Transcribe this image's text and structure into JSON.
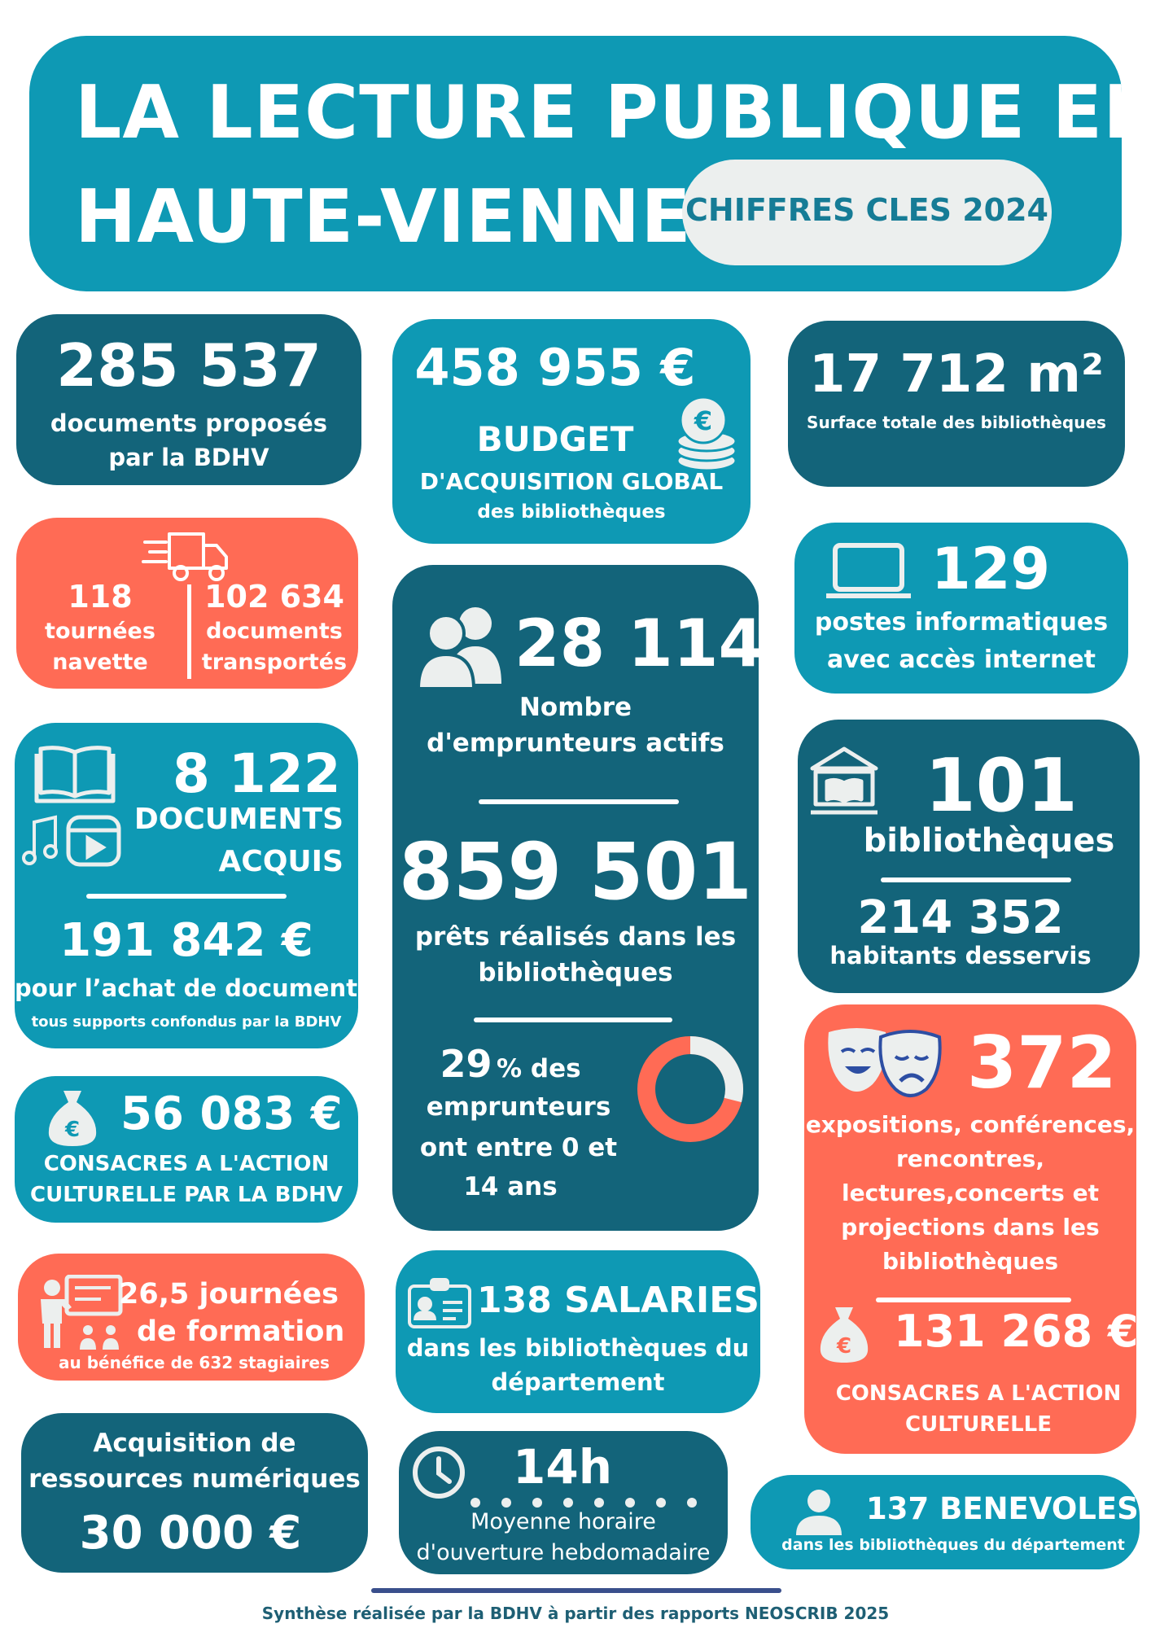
{
  "header": {
    "title_line1": "LA LECTURE PUBLIQUE EN",
    "title_line2": "HAUTE-VIENNE",
    "badge": "CHIFFRES CLES 2024"
  },
  "documents": {
    "value": "285 537",
    "label1": "documents proposés",
    "label2": "par la BDHV"
  },
  "budget": {
    "value": "458 955 €",
    "label1": "BUDGET",
    "label2": "D'ACQUISITION GLOBAL",
    "label3": "des bibliothèques"
  },
  "surface": {
    "value": "17 712 m²",
    "label": "Surface totale des bibliothèques"
  },
  "navette": {
    "tours_value": "118",
    "tours_label1": "tournées",
    "tours_label2": "navette",
    "docs_value": "102 634",
    "docs_label1": "documents",
    "docs_label2": "transportés"
  },
  "emprunteurs": {
    "value": "28 114",
    "label1": "Nombre",
    "label2": "d'emprunteurs actifs",
    "prets_value": "859 501",
    "prets_label1": "prêts réalisés dans les",
    "prets_label2": "bibliothèques",
    "pct_value": "29",
    "pct_text": "% des",
    "pct_label1": "emprunteurs",
    "pct_label2": "ont entre 0 et",
    "pct_label3": "14 ans",
    "pct_fraction": 0.29
  },
  "postes": {
    "value": "129",
    "label1": "postes informatiques",
    "label2": "avec accès internet"
  },
  "acquis": {
    "value": "8 122",
    "label1": "DOCUMENTS",
    "label2": "ACQUIS",
    "amount": "191 842 €",
    "amount_label1": "pour l’achat de documents",
    "amount_label2": "tous supports confondus par la BDHV"
  },
  "bibliotheques": {
    "value": "101",
    "label": "bibliothèques",
    "habitants_value": "214 352",
    "habitants_label": "habitants desservis"
  },
  "action_bdhv": {
    "value": "56 083 €",
    "label1": "CONSACRES A L'ACTION",
    "label2": "CULTURELLE PAR LA BDHV"
  },
  "evenements": {
    "value": "372",
    "label1": "expositions, conférences,",
    "label2": "rencontres,",
    "label3": "lectures,concerts et",
    "label4": "projections  dans les",
    "label5": "bibliothèques",
    "amount": "131 268 €",
    "amount_label1": "CONSACRES A L'ACTION",
    "amount_label2": "CULTURELLE"
  },
  "formation": {
    "value": "26,5",
    "label1": "journées",
    "label2": "de formation",
    "label3": "au bénéfice de 632 stagiaires"
  },
  "salaries": {
    "title": "138 SALARIES",
    "label1": "dans les bibliothèques du",
    "label2": "département"
  },
  "numerique": {
    "label1": "Acquisition de",
    "label2": "ressources numériques",
    "value": "30 000 €"
  },
  "horaire": {
    "value": "14h",
    "label1": "Moyenne horaire",
    "label2": "d'ouverture hebdomadaire"
  },
  "benevoles": {
    "title": "137 BENEVOLES",
    "label": "dans les bibliothèques du département"
  },
  "footer": {
    "text": "Synthèse réalisée par la BDHV à partir des rapports NEOSCRIB 2025"
  },
  "colors": {
    "teal": "#0E99B4",
    "dark": "#13647A",
    "coral": "#FF6B55",
    "light": "#ECEFEE",
    "footer_rule": "#3A4F8C"
  },
  "icons": [
    "truck-icon",
    "euro-coins-icon",
    "users-icon",
    "laptop-icon",
    "book-icon",
    "music-note-icon",
    "video-icon",
    "library-building-icon",
    "money-bag-icon",
    "theater-masks-icon",
    "teacher-icon",
    "id-card-icon",
    "clock-icon",
    "person-icon",
    "donut-chart-icon"
  ]
}
